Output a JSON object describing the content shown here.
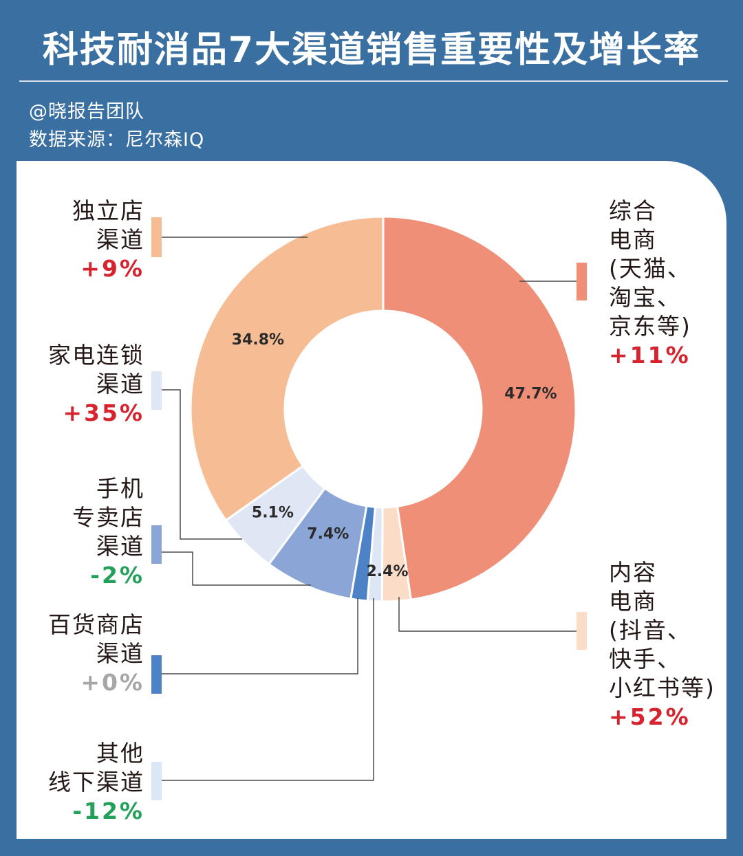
{
  "title": "科技耐消品7大渠道销售重要性及增长率",
  "author": "@晓报告团队",
  "source": "数据来源：尼尔森IQ",
  "chart_data": {
    "type": "donut",
    "title": "科技耐消品7大渠道销售重要性及增长率",
    "unit": "%",
    "slices": [
      {
        "name": "综合电商(天猫、淘宝、京东等)",
        "label_lines": [
          "综合",
          "电商",
          "(天猫、",
          "淘宝、",
          "京东等)"
        ],
        "value": 47.7,
        "value_label": "47.7%",
        "growth": "+11%",
        "growth_dir": "up",
        "color": "#f08f78"
      },
      {
        "name": "内容电商(抖音、快手、小红书等)",
        "label_lines": [
          "内容",
          "电商",
          "(抖音、",
          "快手、",
          "小红书等)"
        ],
        "value": 2.4,
        "value_label": "2.4%",
        "growth": "+52%",
        "growth_dir": "up",
        "color": "#fbdcc6"
      },
      {
        "name": "其他线下渠道",
        "label_lines": [
          "其他",
          "线下渠道"
        ],
        "value": 1.2,
        "value_label": "",
        "growth": "-12%",
        "growth_dir": "down",
        "color": "#dde6f5"
      },
      {
        "name": "百货商店渠道",
        "label_lines": [
          "百货商店",
          "渠道"
        ],
        "value": 1.4,
        "value_label": "",
        "growth": "+0%",
        "growth_dir": "flat",
        "color": "#4e82c6"
      },
      {
        "name": "手机专卖店渠道",
        "label_lines": [
          "手机",
          "专卖店",
          "渠道"
        ],
        "value": 7.4,
        "value_label": "7.4%",
        "growth": "-2%",
        "growth_dir": "down",
        "color": "#8aa5d6"
      },
      {
        "name": "家电连锁渠道",
        "label_lines": [
          "家电连锁",
          "渠道"
        ],
        "value": 5.1,
        "value_label": "5.1%",
        "growth": "+35%",
        "growth_dir": "up",
        "color": "#dfe6f4"
      },
      {
        "name": "独立店渠道",
        "label_lines": [
          "独立店",
          "渠道"
        ],
        "value": 34.8,
        "value_label": "34.8%",
        "growth": "+9%",
        "growth_dir": "up",
        "color": "#f6bd94"
      }
    ]
  }
}
